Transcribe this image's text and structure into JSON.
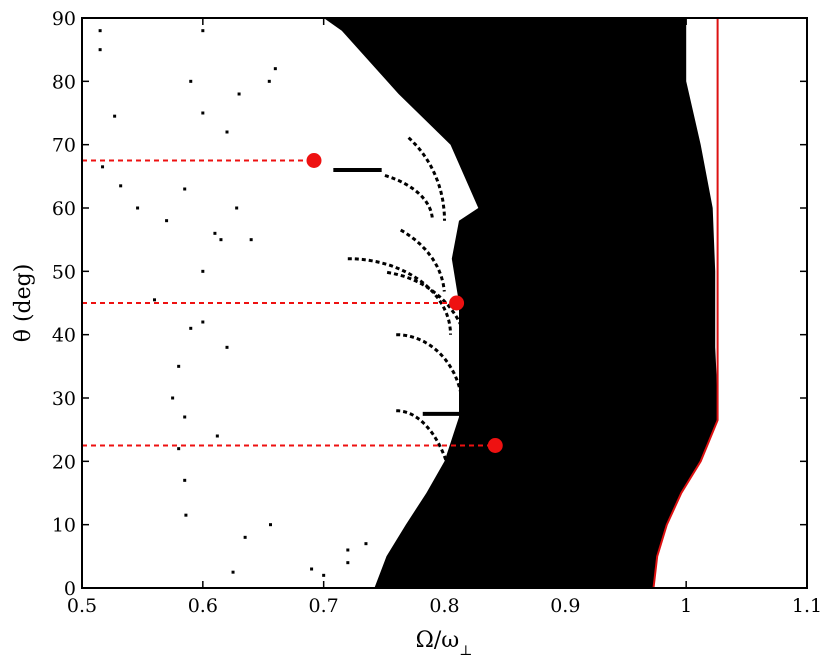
{
  "chart_data": {
    "type": "scatter",
    "title": "",
    "xlabel": "Ω/ω",
    "xlabel_sub": "⊥",
    "ylabel": "θ (deg)",
    "xlim": [
      0.5,
      1.1
    ],
    "ylim": [
      0,
      90
    ],
    "x_ticks": [
      0.5,
      0.6,
      0.7,
      0.8,
      0.9,
      1,
      1.1
    ],
    "x_tick_labels": [
      "0.5",
      "0.6",
      "0.7",
      "0.8",
      "0.9",
      "1",
      "1.1"
    ],
    "y_ticks": [
      0,
      10,
      20,
      30,
      40,
      50,
      60,
      70,
      80,
      90
    ],
    "y_tick_labels": [
      "0",
      "10",
      "20",
      "30",
      "40",
      "50",
      "60",
      "70",
      "80",
      "90"
    ],
    "grid": false,
    "colors": {
      "region": "#000000",
      "marker": "#ee1111",
      "boundary": "#dd1111"
    },
    "markers": [
      {
        "x": 0.692,
        "y": 67.5
      },
      {
        "x": 0.81,
        "y": 45
      },
      {
        "x": 0.842,
        "y": 22.5
      }
    ],
    "boundary_curve": [
      [
        0.973,
        0
      ],
      [
        0.976,
        5
      ],
      [
        0.984,
        10
      ],
      [
        0.996,
        15
      ],
      [
        1.012,
        20
      ],
      [
        1.026,
        26.5
      ],
      [
        1.026,
        90
      ]
    ],
    "black_region_boundary": [
      [
        0.742,
        0
      ],
      [
        0.752,
        5
      ],
      [
        0.768,
        10
      ],
      [
        0.785,
        15
      ],
      [
        0.8,
        20
      ],
      [
        0.812,
        27
      ],
      [
        0.812,
        45
      ],
      [
        0.806,
        52
      ],
      [
        0.812,
        58
      ],
      [
        0.828,
        60
      ],
      [
        0.805,
        70
      ],
      [
        0.762,
        78
      ],
      [
        0.715,
        88
      ],
      [
        0.7,
        90
      ],
      [
        1.0,
        90
      ],
      [
        1.0,
        80
      ],
      [
        1.012,
        70
      ],
      [
        1.022,
        60
      ],
      [
        1.024,
        50
      ],
      [
        1.024,
        38
      ],
      [
        1.026,
        30
      ],
      [
        1.026,
        26.5
      ],
      [
        1.012,
        20
      ],
      [
        0.996,
        15
      ],
      [
        0.984,
        10
      ],
      [
        0.976,
        5
      ],
      [
        0.973,
        0
      ]
    ],
    "arcs": [
      {
        "cx": 0.718,
        "cy": 58,
        "rx": 0.082,
        "ry": 17,
        "from": 0.28,
        "to": 0.0
      },
      {
        "cx": 0.718,
        "cy": 58,
        "rx": 0.072,
        "ry": 8,
        "from": 0.35,
        "to": 0.02
      },
      {
        "cx": 0.712,
        "cy": 46,
        "rx": 0.088,
        "ry": 13,
        "from": 0.3,
        "to": 0.02
      },
      {
        "cx": 0.72,
        "cy": 40,
        "rx": 0.085,
        "ry": 12,
        "from": 0.5,
        "to": 0.0
      },
      {
        "cx": 0.74,
        "cy": 36,
        "rx": 0.08,
        "ry": 14,
        "from": 0.45,
        "to": 0.0
      },
      {
        "cx": 0.76,
        "cy": 28,
        "rx": 0.055,
        "ry": 12,
        "from": 0.5,
        "to": 0.0
      },
      {
        "cx": 0.76,
        "cy": 10,
        "rx": 0.05,
        "ry": 18,
        "from": 0.5,
        "to": 0.0
      },
      {
        "cx": 0.7,
        "cy": 78,
        "rx": 0.12,
        "ry": 20,
        "from": 0.5,
        "to": 0.15
      }
    ],
    "lines": [
      {
        "x1": 0.782,
        "y1": 27.5,
        "x2": 0.812,
        "y2": 27.5
      },
      {
        "x1": 0.708,
        "y1": 66,
        "x2": 0.748,
        "y2": 66
      }
    ],
    "scatter_points": [
      [
        0.515,
        88
      ],
      [
        0.515,
        85
      ],
      [
        0.527,
        74.5
      ],
      [
        0.517,
        66.5
      ],
      [
        0.532,
        63.5
      ],
      [
        0.546,
        60
      ],
      [
        0.56,
        45.5
      ],
      [
        0.57,
        58
      ],
      [
        0.575,
        30
      ],
      [
        0.58,
        22
      ],
      [
        0.585,
        17
      ],
      [
        0.586,
        11.5
      ],
      [
        0.59,
        41
      ],
      [
        0.6,
        50
      ],
      [
        0.6,
        42
      ],
      [
        0.61,
        56
      ],
      [
        0.612,
        24
      ],
      [
        0.62,
        38
      ],
      [
        0.625,
        2.5
      ],
      [
        0.628,
        60
      ],
      [
        0.635,
        8
      ],
      [
        0.64,
        55
      ],
      [
        0.656,
        10
      ],
      [
        0.66,
        82
      ],
      [
        0.655,
        80
      ],
      [
        0.69,
        3
      ],
      [
        0.7,
        2
      ],
      [
        0.72,
        4
      ],
      [
        0.72,
        6
      ],
      [
        0.735,
        7
      ],
      [
        0.585,
        27
      ],
      [
        0.58,
        35
      ],
      [
        0.615,
        55
      ],
      [
        0.6,
        88
      ],
      [
        0.59,
        80
      ],
      [
        0.6,
        75
      ],
      [
        0.62,
        72
      ],
      [
        0.63,
        78
      ],
      [
        0.585,
        63
      ]
    ]
  }
}
